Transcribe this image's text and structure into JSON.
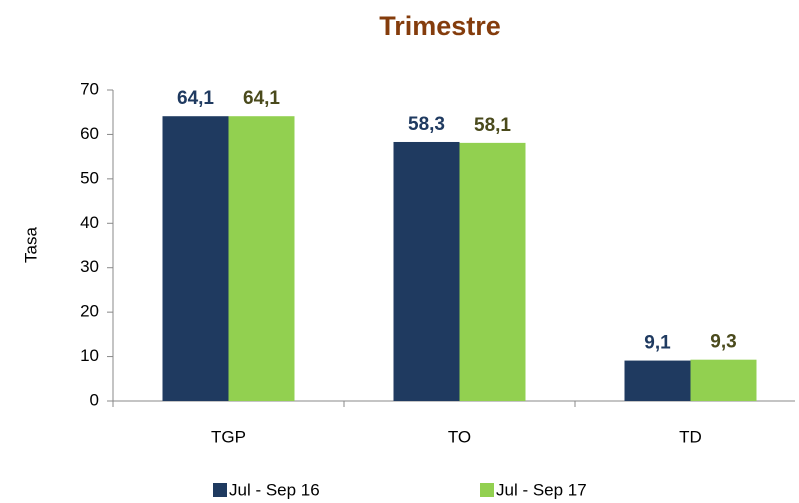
{
  "chart_data": {
    "type": "bar",
    "title": "Trimestre",
    "y_label": "Tasa",
    "categories": [
      "TGP",
      "TO",
      "TD"
    ],
    "series": [
      {
        "name": "Jul - Sep 16",
        "color": "#1f3a60",
        "label_color": "#1f3a60",
        "values": [
          64.1,
          58.3,
          9.1
        ],
        "value_labels": [
          "64,1",
          "58,3",
          "9,1"
        ]
      },
      {
        "name": "Jul - Sep 17",
        "color": "#92d050",
        "label_color": "#4a4a1c",
        "values": [
          64.1,
          58.1,
          9.3
        ],
        "value_labels": [
          "64,1",
          "58,1",
          "9,3"
        ]
      }
    ],
    "ylim": [
      0,
      70
    ],
    "yticks": [
      0,
      10,
      20,
      30,
      40,
      50,
      60,
      70
    ],
    "grid": false,
    "legend": "bottom"
  }
}
